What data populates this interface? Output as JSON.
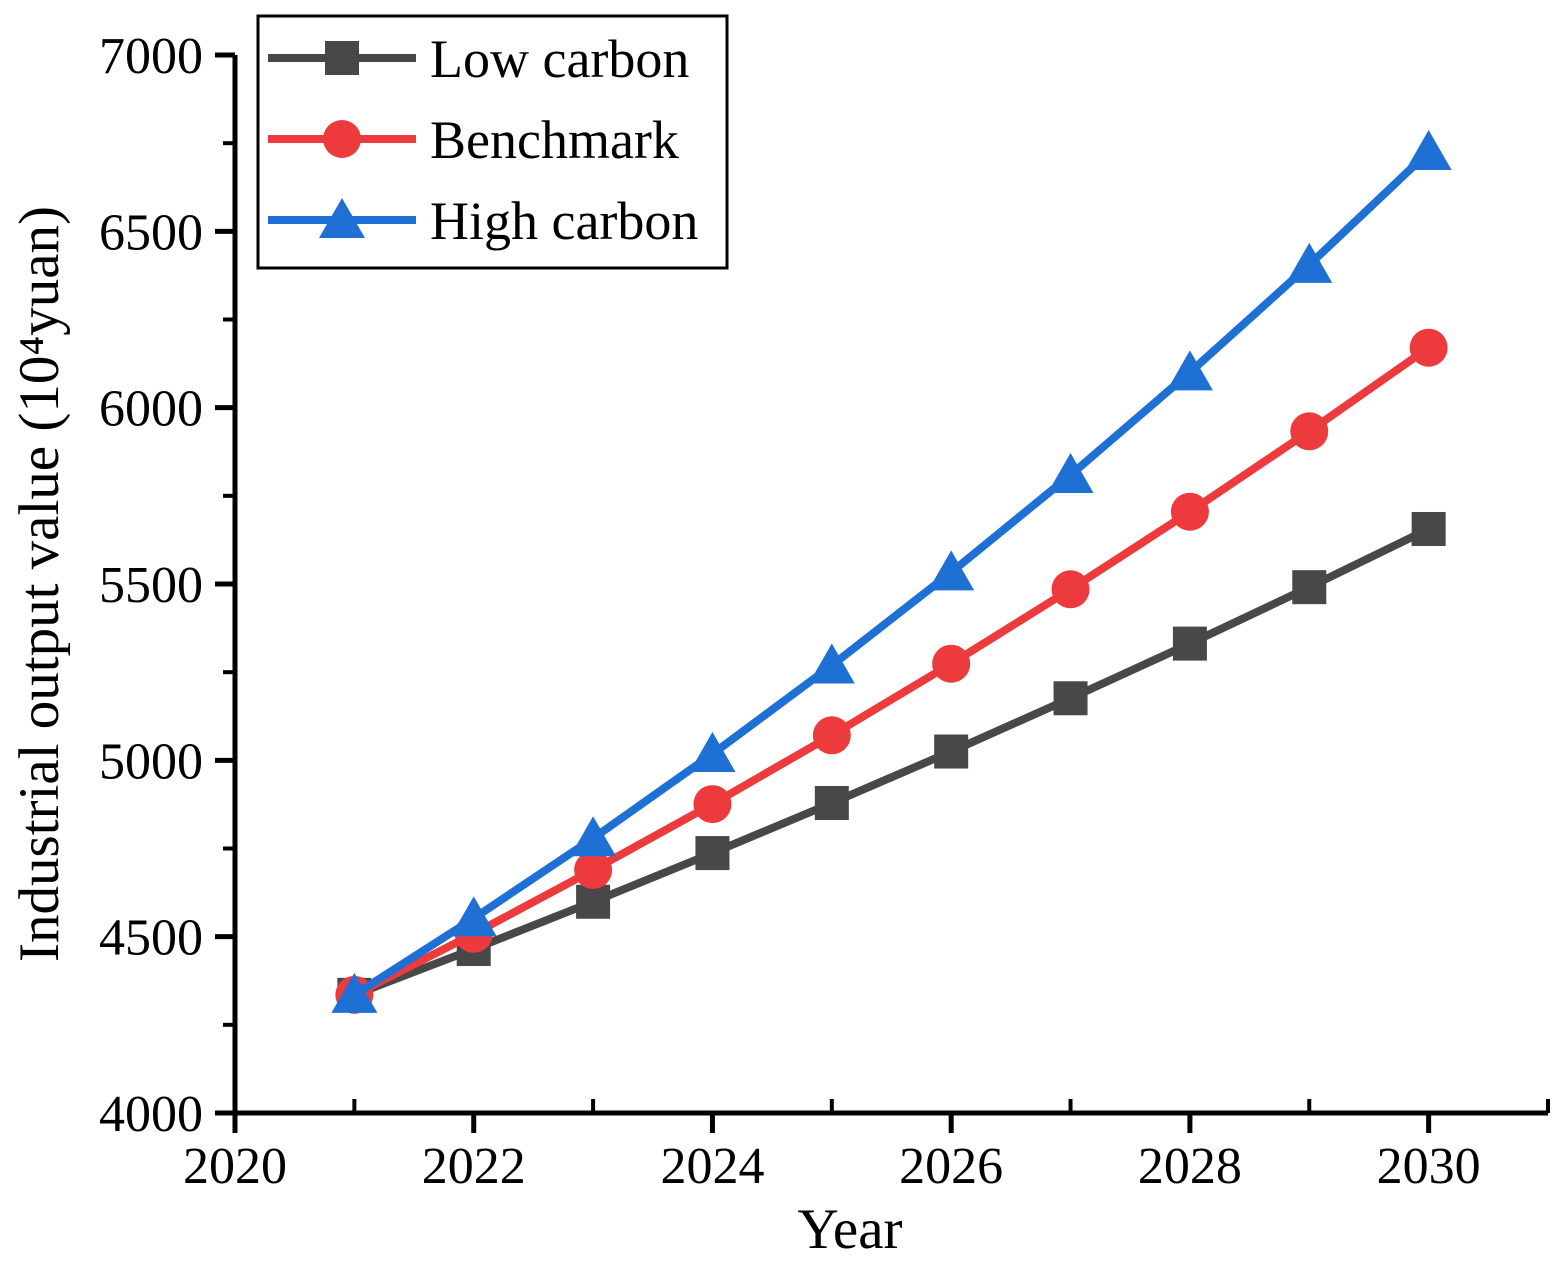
{
  "chart_data": {
    "type": "line",
    "title": "",
    "xlabel": "Year",
    "ylabel": "Industrial output value (10⁴yuan)",
    "x": [
      2021,
      2022,
      2023,
      2024,
      2025,
      2026,
      2027,
      2028,
      2029,
      2030
    ],
    "series": [
      {
        "name": "Low carbon",
        "marker": "square",
        "color": "#484848",
        "values": [
          4335,
          4465,
          4599,
          4737,
          4879,
          5025,
          5176,
          5331,
          5491,
          5656
        ]
      },
      {
        "name": "Benchmark",
        "marker": "circle",
        "color": "#ed3a3c",
        "values": [
          4335,
          4508,
          4689,
          4876,
          5071,
          5274,
          5485,
          5705,
          5933,
          6170
        ]
      },
      {
        "name": "High carbon",
        "marker": "triangle",
        "color": "#1f70d4",
        "values": [
          4335,
          4552,
          4779,
          5018,
          5269,
          5533,
          5809,
          6100,
          6405,
          6725
        ]
      }
    ],
    "xlim": [
      2020,
      2031
    ],
    "ylim": [
      4000,
      7000
    ],
    "x_major_ticks": [
      2020,
      2022,
      2024,
      2026,
      2028,
      2030
    ],
    "x_minor_ticks": [
      2021,
      2023,
      2025,
      2027,
      2029,
      2031
    ],
    "y_major_ticks": [
      7000,
      6500,
      6000,
      5500,
      5000,
      4500,
      4000
    ],
    "y_minor_ticks": [
      6750,
      6250,
      5750,
      5250,
      4750,
      4250
    ],
    "grid": false,
    "legend_position": "top-left",
    "axis_color": "#000000"
  },
  "legend": {
    "items": [
      {
        "label": "Low carbon"
      },
      {
        "label": "Benchmark"
      },
      {
        "label": "High carbon"
      }
    ]
  }
}
